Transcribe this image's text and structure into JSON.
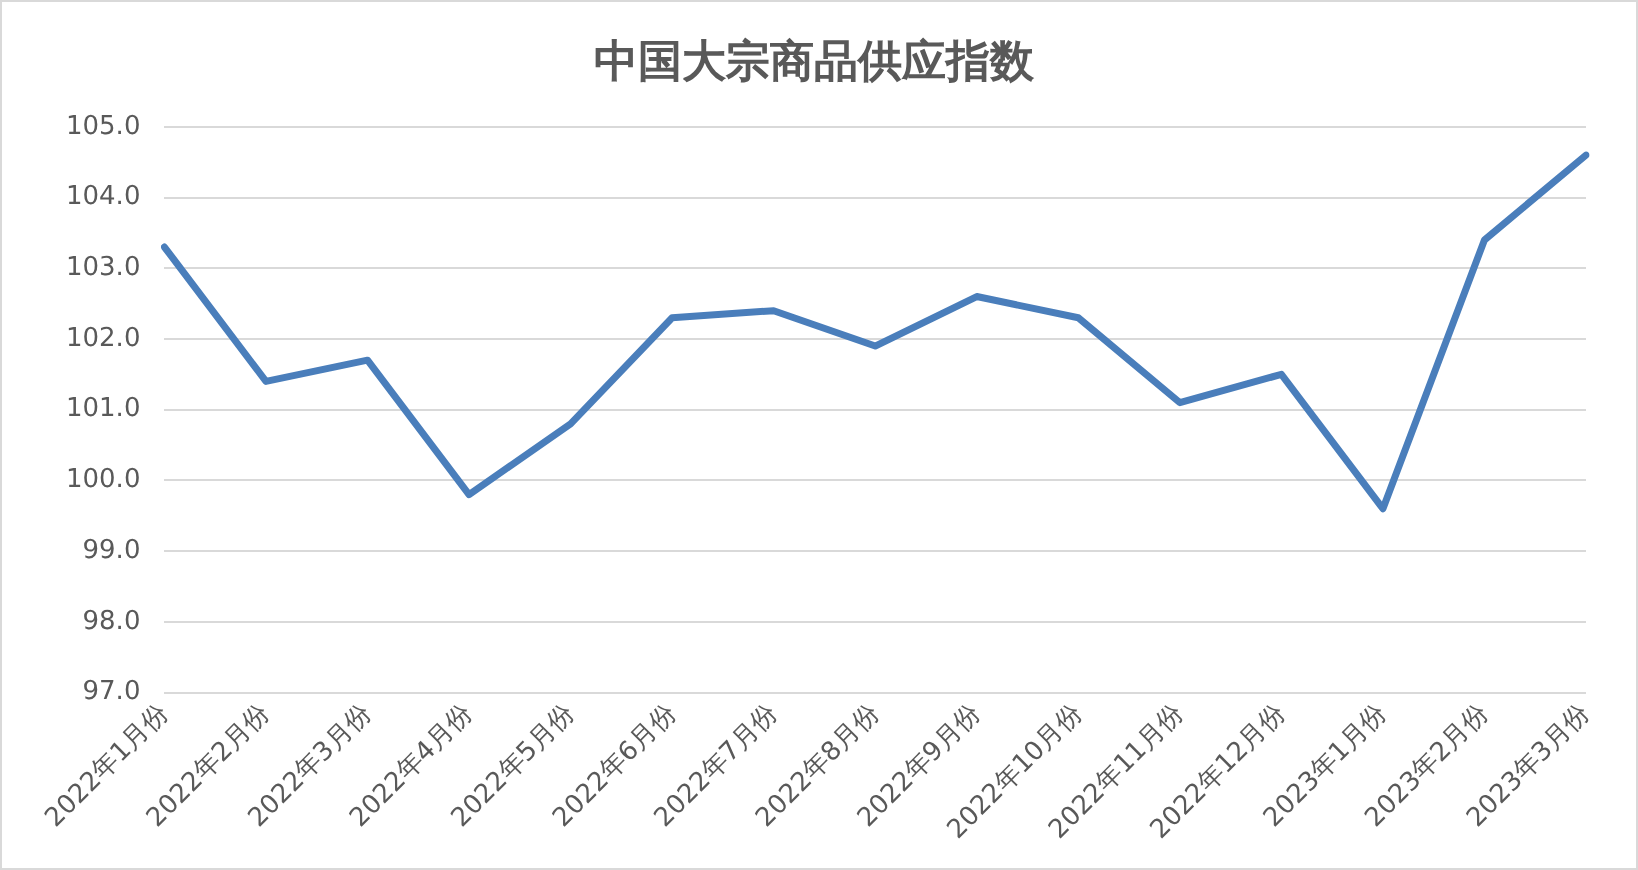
{
  "chart_data": {
    "type": "line",
    "title": "中国大宗商品供应指数",
    "categories": [
      "2022年1月份",
      "2022年2月份",
      "2022年3月份",
      "2022年4月份",
      "2022年5月份",
      "2022年6月份",
      "2022年7月份",
      "2022年8月份",
      "2022年9月份",
      "2022年10月份",
      "2022年11月份",
      "2022年12月份",
      "2023年1月份",
      "2023年2月份",
      "2023年3月份"
    ],
    "series": [
      {
        "color": "#4a7ebb",
        "values": [
          103.3,
          101.4,
          101.7,
          99.8,
          100.8,
          102.3,
          102.4,
          101.9,
          102.6,
          102.3,
          101.1,
          101.5,
          99.6,
          103.4,
          104.6
        ]
      }
    ],
    "ylim": [
      97,
      105
    ],
    "yticks": [
      {
        "value": 97,
        "label": "97.0"
      },
      {
        "value": 98,
        "label": "98.0"
      },
      {
        "value": 99,
        "label": "99.0"
      },
      {
        "value": 100,
        "label": "100.0"
      },
      {
        "value": 101,
        "label": "101.0"
      },
      {
        "value": 102,
        "label": "102.0"
      },
      {
        "value": 103,
        "label": "103.0"
      },
      {
        "value": 104,
        "label": "104.0"
      },
      {
        "value": 105,
        "label": "105.0"
      }
    ],
    "grid": "y",
    "legend": false,
    "marker": "none",
    "line_style": "solid"
  }
}
